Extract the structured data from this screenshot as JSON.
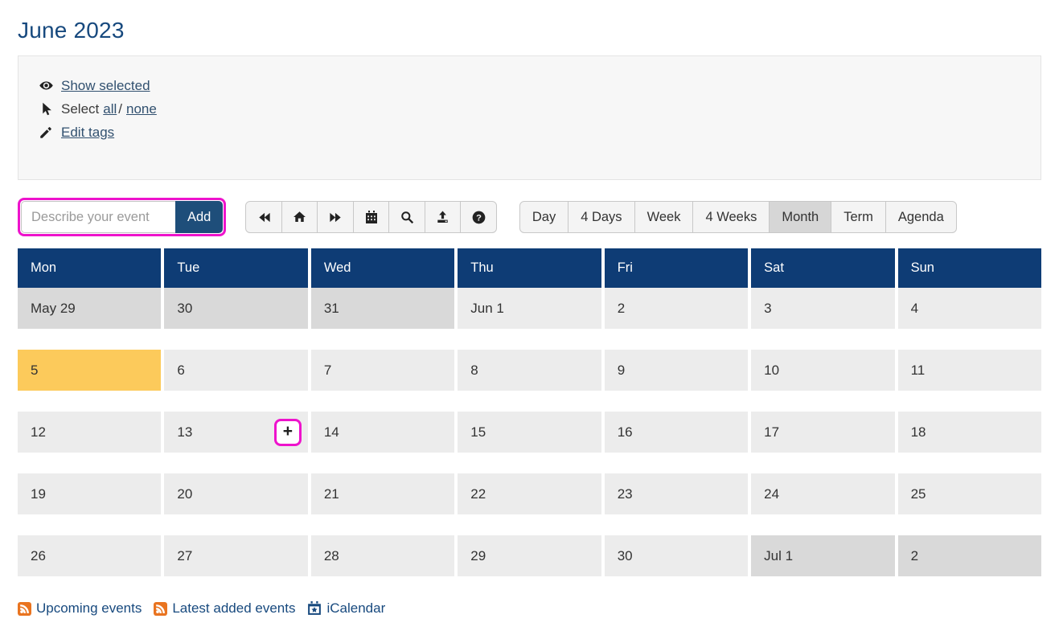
{
  "page": {
    "title": "June 2023"
  },
  "tools": {
    "show_selected": "Show selected",
    "select_label": "Select",
    "select_all": "all",
    "select_separator": "/",
    "select_none": "none",
    "edit_tags": "Edit tags"
  },
  "event_form": {
    "placeholder": "Describe your event",
    "add_label": "Add"
  },
  "toolbar": {
    "buttons": [
      {
        "name": "previous",
        "icon": "fast-backward-icon"
      },
      {
        "name": "home",
        "icon": "home-icon"
      },
      {
        "name": "next",
        "icon": "fast-forward-icon"
      },
      {
        "name": "goto-date",
        "icon": "calendar-icon"
      },
      {
        "name": "search",
        "icon": "search-icon"
      },
      {
        "name": "upload",
        "icon": "upload-icon"
      },
      {
        "name": "help",
        "icon": "help-icon"
      }
    ]
  },
  "views": {
    "options": [
      "Day",
      "4 Days",
      "Week",
      "4 Weeks",
      "Month",
      "Term",
      "Agenda"
    ],
    "selected": "Month"
  },
  "calendar": {
    "weekday_headers": [
      "Mon",
      "Tue",
      "Wed",
      "Thu",
      "Fri",
      "Sat",
      "Sun"
    ],
    "weeks": [
      [
        {
          "label": "May 29",
          "out": true
        },
        {
          "label": "30",
          "out": true
        },
        {
          "label": "31",
          "out": true
        },
        {
          "label": "Jun 1"
        },
        {
          "label": "2"
        },
        {
          "label": "3"
        },
        {
          "label": "4"
        }
      ],
      [
        {
          "label": "5",
          "today": true
        },
        {
          "label": "6"
        },
        {
          "label": "7"
        },
        {
          "label": "8"
        },
        {
          "label": "9"
        },
        {
          "label": "10"
        },
        {
          "label": "11"
        }
      ],
      [
        {
          "label": "12"
        },
        {
          "label": "13",
          "add_button": true
        },
        {
          "label": "14"
        },
        {
          "label": "15"
        },
        {
          "label": "16"
        },
        {
          "label": "17"
        },
        {
          "label": "18"
        }
      ],
      [
        {
          "label": "19"
        },
        {
          "label": "20"
        },
        {
          "label": "21"
        },
        {
          "label": "22"
        },
        {
          "label": "23"
        },
        {
          "label": "24"
        },
        {
          "label": "25"
        }
      ],
      [
        {
          "label": "26"
        },
        {
          "label": "27"
        },
        {
          "label": "28"
        },
        {
          "label": "29"
        },
        {
          "label": "30"
        },
        {
          "label": "Jul 1",
          "out": true
        },
        {
          "label": "2",
          "out": true
        }
      ]
    ],
    "add_button_label": "+"
  },
  "footer": {
    "links": [
      {
        "label": "Upcoming events",
        "icon": "rss-icon"
      },
      {
        "label": "Latest added events",
        "icon": "rss-icon"
      },
      {
        "label": "iCalendar",
        "icon": "icalendar-icon"
      }
    ]
  },
  "colors": {
    "header_navy": "#0e3c75",
    "button_navy": "#1e4e7a",
    "link_navy": "#17497e",
    "tools_link_navy": "#31506f",
    "today_yellow": "#fcca5b",
    "highlight_magenta": "#ee13cc",
    "in_month_gray": "#ececec",
    "out_month_gray": "#d9d9d9",
    "rss_orange": "#e97420"
  }
}
